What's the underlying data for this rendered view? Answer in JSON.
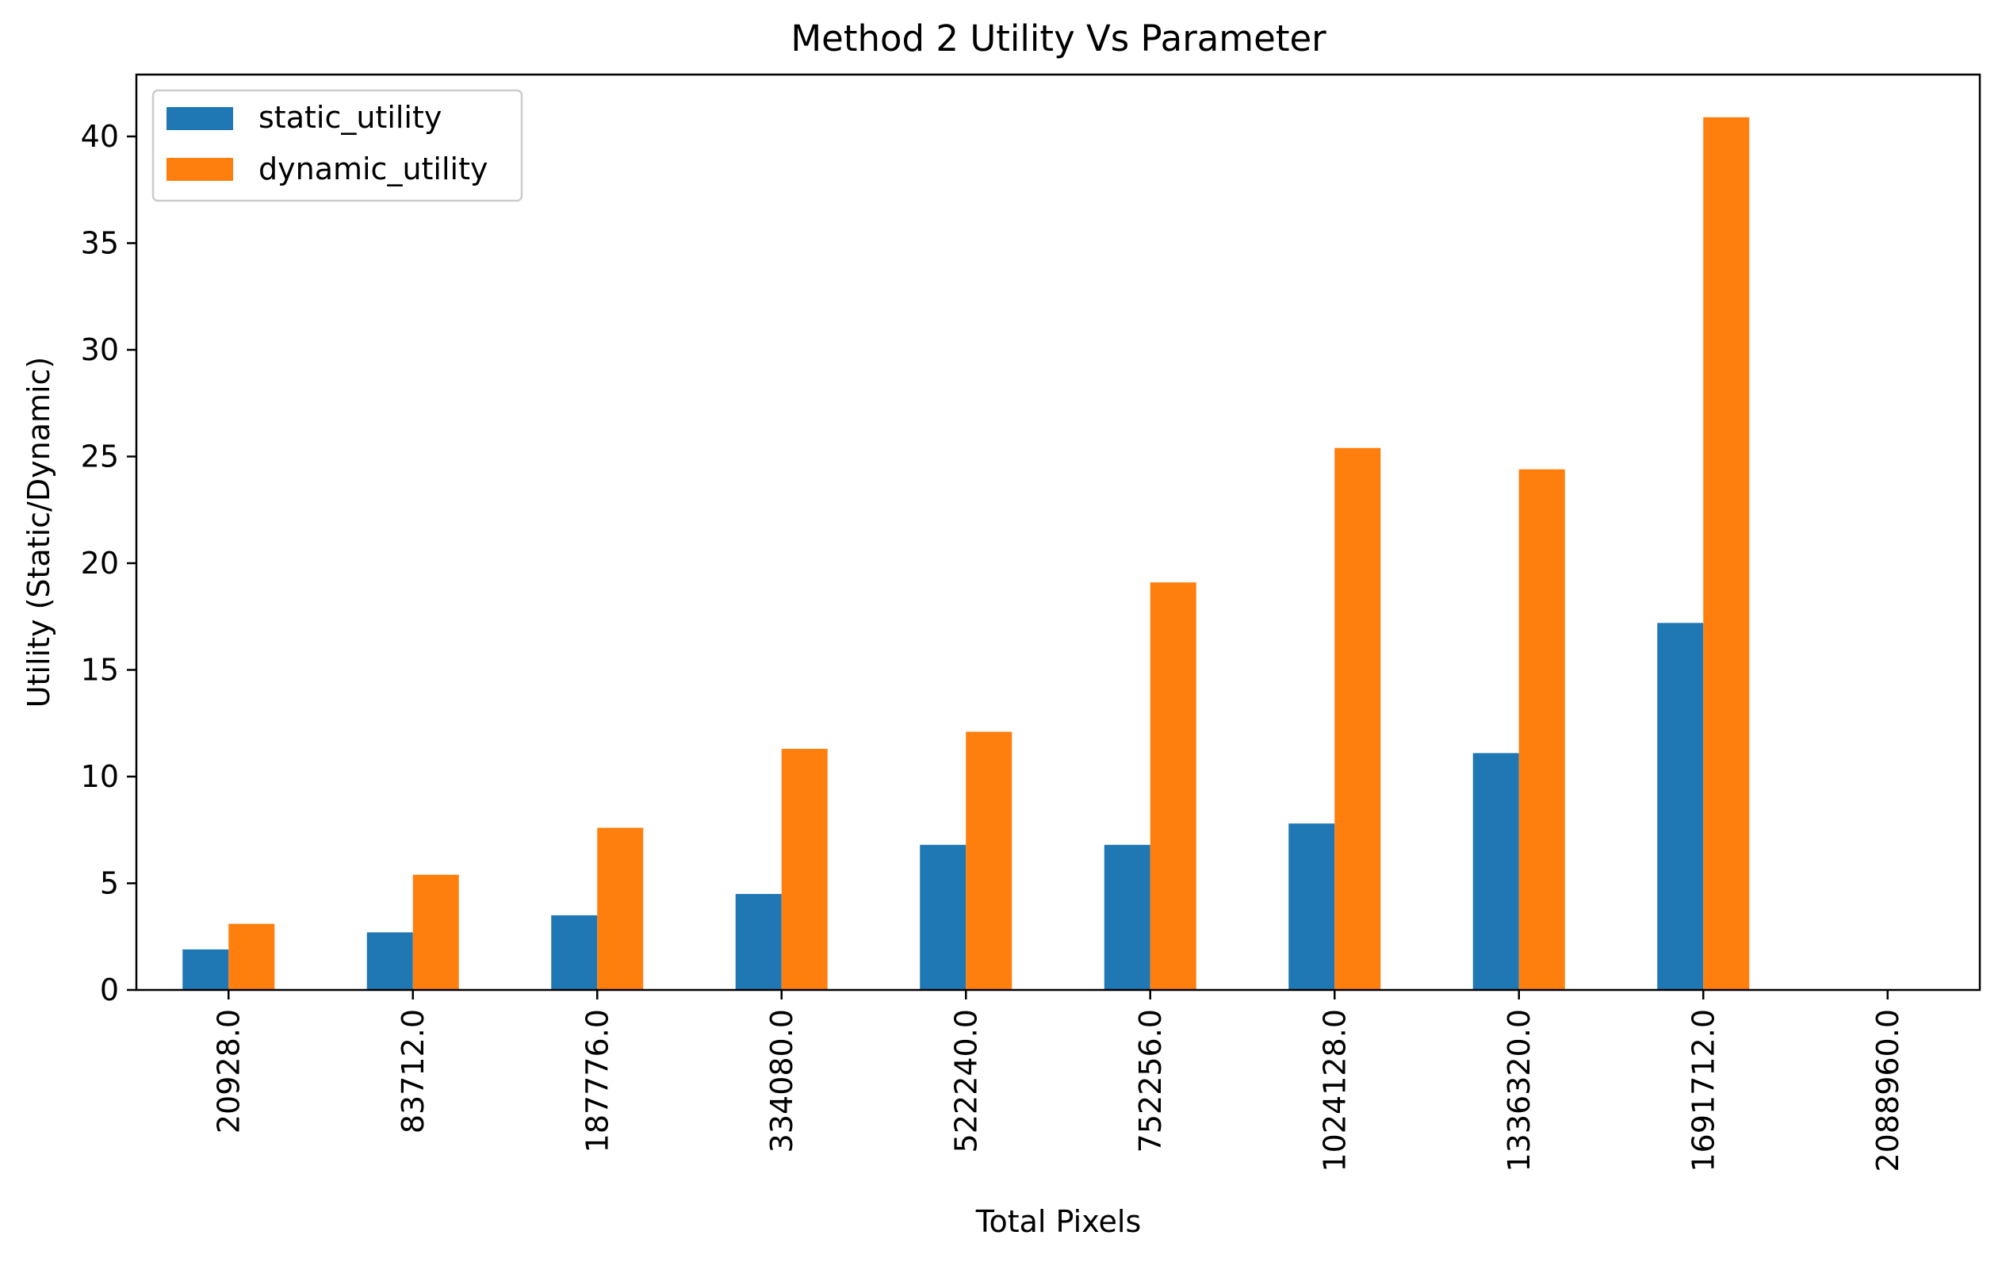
{
  "chart_data": {
    "type": "bar",
    "title": "Method 2 Utility Vs Parameter",
    "xlabel": "Total Pixels",
    "ylabel": "Utility (Static/Dynamic)",
    "categories": [
      "20928.0",
      "83712.0",
      "187776.0",
      "334080.0",
      "522240.0",
      "752256.0",
      "1024128.0",
      "1336320.0",
      "1691712.0",
      "2088960.0"
    ],
    "series": [
      {
        "name": "static_utility",
        "color": "#1f77b4",
        "values": [
          1.9,
          2.7,
          3.5,
          4.5,
          6.8,
          6.8,
          7.8,
          11.1,
          17.2,
          0
        ]
      },
      {
        "name": "dynamic_utility",
        "color": "#ff7f0e",
        "values": [
          3.1,
          5.4,
          7.6,
          11.3,
          12.1,
          19.1,
          25.4,
          24.4,
          40.9,
          0
        ]
      }
    ],
    "ylim": [
      0,
      42.9
    ],
    "yticks": [
      0,
      5,
      10,
      15,
      20,
      25,
      30,
      35,
      40
    ],
    "grid": false,
    "legend": "top-left"
  }
}
